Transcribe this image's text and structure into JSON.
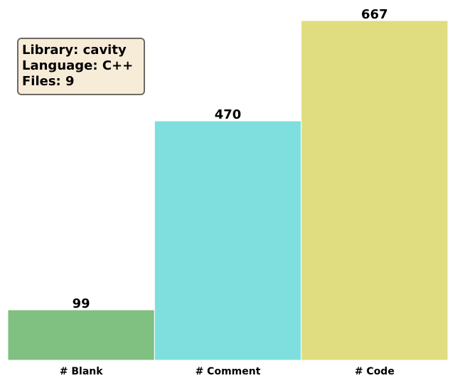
{
  "chart_data": {
    "type": "bar",
    "categories": [
      "# Blank",
      "# Comment",
      "# Code"
    ],
    "values": [
      99,
      470,
      667
    ],
    "colors": [
      "#80c080",
      "#7fdfdf",
      "#dfdd7f"
    ],
    "title": "",
    "xlabel": "",
    "ylabel": "",
    "ylim": [
      0,
      667
    ],
    "grid": false,
    "legend": "none",
    "annotation": {
      "lines": [
        "Library: cavity",
        "Language: C++",
        "Files: 9"
      ],
      "background": "#f7ecd8",
      "border": "#6e6a63"
    }
  }
}
